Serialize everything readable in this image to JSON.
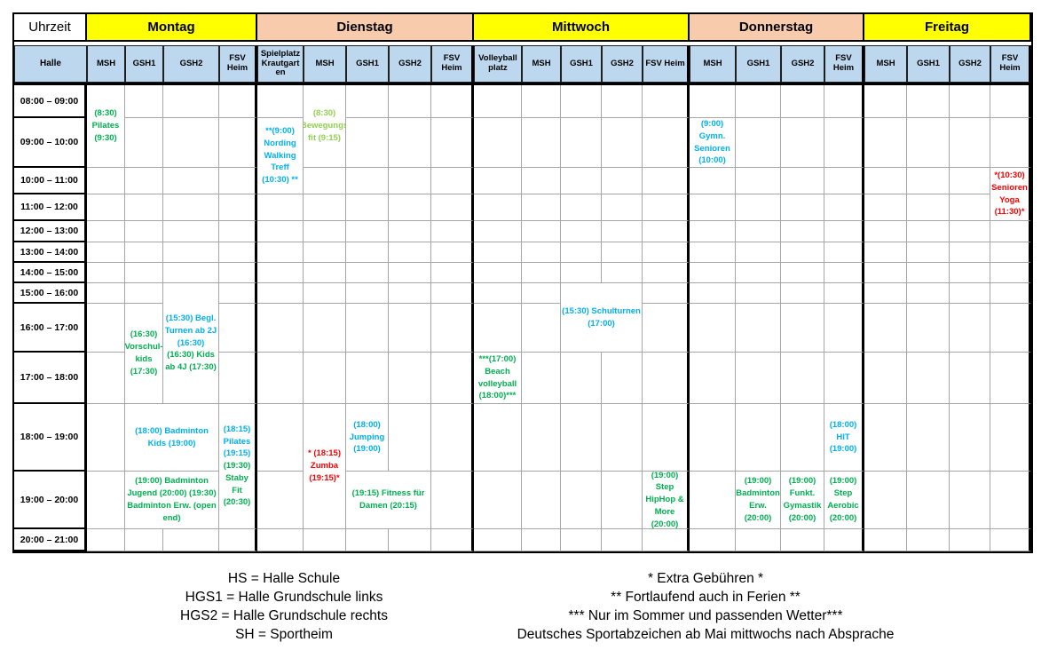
{
  "table": {
    "uhrzeit_label": "Uhrzeit",
    "halle_label": "Halle",
    "days": [
      {
        "name": "Montag",
        "color": "yellow",
        "cols": [
          "MSH",
          "GSH1",
          "GSH2",
          "FSV Heim"
        ]
      },
      {
        "name": "Dienstag",
        "color": "peach",
        "cols": [
          "Spielplatz Krautgarten",
          "MSH",
          "GSH1",
          "GSH2",
          "FSV Heim"
        ]
      },
      {
        "name": "Mittwoch",
        "color": "yellow",
        "cols": [
          "Volleyball platz",
          "MSH",
          "GSH1",
          "GSH2",
          "FSV Heim"
        ]
      },
      {
        "name": "Donnerstag",
        "color": "peach",
        "cols": [
          "MSH",
          "GSH1",
          "GSH2",
          "FSV Heim"
        ]
      },
      {
        "name": "Freitag",
        "color": "yellow",
        "cols": [
          "MSH",
          "GSH1",
          "GSH2",
          "FSV Heim"
        ]
      }
    ],
    "time_rows": [
      "08:00 – 09:00",
      "09:00 – 10:00",
      "10:00 – 11:00",
      "11:00 – 12:00",
      "12:00 – 13:00",
      "13:00 – 14:00",
      "14:00 – 15:00",
      "15:00 – 16:00",
      "16:00 – 17:00",
      "17:00 – 18:00",
      "18:00 – 19:00",
      "19:00 – 20:00",
      "20:00 – 21:00"
    ],
    "events": [
      {
        "name": "pilates-montag",
        "day": "Montag",
        "hall": "MSH",
        "col": 2,
        "row": 1,
        "rowspan": 2,
        "colspan": 1,
        "segments": [
          {
            "color": "green",
            "text": "(8:30) Pilates (9:30)"
          }
        ]
      },
      {
        "name": "vorschulkids-montag",
        "day": "Montag",
        "hall": "GSH1",
        "col": 3,
        "row": 9,
        "rowspan": 2,
        "colspan": 1,
        "segments": [
          {
            "color": "green",
            "text": "(16:30) Vorschul-kids (17:30)"
          }
        ]
      },
      {
        "name": "begl-turnen-und-kids-montag",
        "day": "Montag",
        "hall": "GSH2",
        "col": 4,
        "row": 8,
        "rowspan": 3,
        "colspan": 1,
        "segments": [
          {
            "color": "blue",
            "text": "(15:30) Begl. Turnen ab 2J (16:30)"
          },
          {
            "color": "green",
            "text": "(16:30) Kids ab 4J (17:30)"
          }
        ]
      },
      {
        "name": "badminton-kids-montag",
        "day": "Montag",
        "hall": "GSH1+GSH2",
        "col": 3,
        "row": 11,
        "rowspan": 1,
        "colspan": 2,
        "segments": [
          {
            "color": "blue",
            "text": "(18:00) Badminton Kids (19:00)"
          }
        ]
      },
      {
        "name": "badminton-jugend-erw-montag",
        "day": "Montag",
        "hall": "GSH1+GSH2",
        "col": 3,
        "row": 12,
        "rowspan": 1,
        "colspan": 2,
        "segments": [
          {
            "color": "green",
            "text": "(19:00) Badminton Jugend (20:00) (19:30) Badminton Erw. (open end)"
          }
        ]
      },
      {
        "name": "pilates-stabyfit-montag",
        "day": "Montag",
        "hall": "FSV Heim",
        "col": 5,
        "row": 11,
        "rowspan": 2,
        "colspan": 1,
        "segments": [
          {
            "color": "blue",
            "text": "(18:15) Pilates (19:15)"
          },
          {
            "color": "green",
            "text": "(19:30) Staby Fit (20:30)"
          }
        ]
      },
      {
        "name": "nording-walking-treff-dienstag",
        "day": "Dienstag",
        "hall": "Spielplatz Krautgarten",
        "col": 6,
        "row": 2,
        "rowspan": 2,
        "colspan": 1,
        "segments": [
          {
            "color": "blue",
            "text": "**(9:00) Nording Walking Treff (10:30) **"
          }
        ]
      },
      {
        "name": "bewegungsfit-dienstag",
        "day": "Dienstag",
        "hall": "MSH",
        "col": 7,
        "row": 1,
        "rowspan": 2,
        "colspan": 1,
        "segments": [
          {
            "color": "lightgreen",
            "text": "(8:30) Bewegungs fit (9:15)"
          }
        ]
      },
      {
        "name": "zumba-dienstag",
        "day": "Dienstag",
        "hall": "MSH",
        "col": 7,
        "row": 11,
        "rowspan": 2,
        "colspan": 1,
        "segments": [
          {
            "color": "red",
            "text": "* (18:15) Zumba (19:15)*"
          }
        ]
      },
      {
        "name": "jumping-dienstag",
        "day": "Dienstag",
        "hall": "GSH1",
        "col": 8,
        "row": 11,
        "rowspan": 1,
        "colspan": 1,
        "segments": [
          {
            "color": "blue",
            "text": "(18:00) Jumping (19:00)"
          }
        ]
      },
      {
        "name": "fitness-fuer-damen-dienstag",
        "day": "Dienstag",
        "hall": "GSH1+GSH2",
        "col": 8,
        "row": 12,
        "rowspan": 1,
        "colspan": 2,
        "segments": [
          {
            "color": "green",
            "text": "(19:15) Fitness für Damen (20:15)"
          }
        ]
      },
      {
        "name": "beachvolleyball-mittwoch",
        "day": "Mittwoch",
        "hall": "Volleyballplatz",
        "col": 11,
        "row": 10,
        "rowspan": 1,
        "colspan": 1,
        "segments": [
          {
            "color": "green",
            "text": "***(17:00) Beach volleyball (18:00)***"
          }
        ]
      },
      {
        "name": "schulturnen-mittwoch",
        "day": "Mittwoch",
        "hall": "GSH1+GSH2",
        "col": 13,
        "row": 8,
        "rowspan": 2,
        "colspan": 2,
        "segments": [
          {
            "color": "blue",
            "text": "(15:30) Schulturnen (17:00)"
          }
        ]
      },
      {
        "name": "step-hiphop-more-mittwoch",
        "day": "Mittwoch",
        "hall": "FSV Heim",
        "col": 15,
        "row": 12,
        "rowspan": 1,
        "colspan": 1,
        "segments": [
          {
            "color": "green",
            "text": "(19:00) Step HipHop & More (20:00)"
          }
        ]
      },
      {
        "name": "gymn-senioren-donnerstag",
        "day": "Donnerstag",
        "hall": "MSH",
        "col": 16,
        "row": 2,
        "rowspan": 1,
        "colspan": 1,
        "segments": [
          {
            "color": "blue",
            "text": "(9:00) Gymn. Senioren (10:00)"
          }
        ]
      },
      {
        "name": "badminton-erw-donnerstag",
        "day": "Donnerstag",
        "hall": "GSH1",
        "col": 17,
        "row": 12,
        "rowspan": 1,
        "colspan": 1,
        "segments": [
          {
            "color": "green",
            "text": "(19:00) Badminton Erw. (20:00)"
          }
        ]
      },
      {
        "name": "funkt-gymastik-donnerstag",
        "day": "Donnerstag",
        "hall": "GSH2",
        "col": 18,
        "row": 12,
        "rowspan": 1,
        "colspan": 1,
        "segments": [
          {
            "color": "green",
            "text": "(19:00) Funkt. Gymastik (20:00)"
          }
        ]
      },
      {
        "name": "hit-donnerstag",
        "day": "Donnerstag",
        "hall": "FSV Heim",
        "col": 19,
        "row": 11,
        "rowspan": 1,
        "colspan": 1,
        "segments": [
          {
            "color": "blue",
            "text": "(18:00) HIT (19:00)"
          }
        ]
      },
      {
        "name": "step-aerobic-donnerstag",
        "day": "Donnerstag",
        "hall": "FSV Heim",
        "col": 19,
        "row": 12,
        "rowspan": 1,
        "colspan": 1,
        "segments": [
          {
            "color": "green",
            "text": "(19:00) Step Aerobic (20:00)"
          }
        ]
      },
      {
        "name": "senioren-yoga-freitag",
        "day": "Freitag",
        "hall": "FSV Heim",
        "col": 23,
        "row": 3,
        "rowspan": 2,
        "colspan": 1,
        "segments": [
          {
            "color": "red",
            "text": "*(10:30) Senioren Yoga (11:30)*"
          }
        ]
      }
    ]
  },
  "footer": {
    "left": [
      "HS = Halle Schule",
      "HGS1 = Halle Grundschule links",
      "HGS2 = Halle Grundschule rechts",
      "SH = Sportheim"
    ],
    "right": [
      "* Extra Gebühren *",
      "** Fortlaufend auch in Ferien **",
      "*** Nur im Sommer und passenden Wetter***",
      "Deutsches Sportabzeichen ab Mai mittwochs nach Absprache"
    ]
  },
  "colors": {
    "yellow": "#FFFF00",
    "peach": "#F8CBAD",
    "subheader_blue": "#BDD7EE",
    "grid_gray": "#A6A6A6",
    "event_colors": {
      "green": "#00B050",
      "lightgreen": "#92D050",
      "blue": "#00B0F0",
      "red": "#FF0000"
    }
  }
}
